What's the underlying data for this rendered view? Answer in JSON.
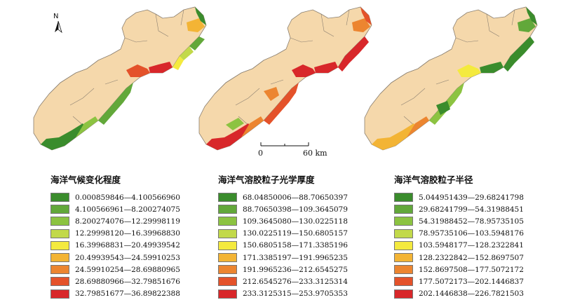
{
  "north_label": "N",
  "scale": {
    "zero": "0",
    "max": "60 km"
  },
  "land_color": "#f5d8ab",
  "border_color": "#8a7f70",
  "panels": [
    {
      "title": "海洋气候变化程度",
      "classes": [
        {
          "range": "0.000859846—4.100566960",
          "color": "#3a8c2c"
        },
        {
          "range": "4.100566961—8.200274075",
          "color": "#62a83a"
        },
        {
          "range": "8.200274076—12.29998119",
          "color": "#8cc341"
        },
        {
          "range": "12.29998120—16.39968830",
          "color": "#c2d94a"
        },
        {
          "range": "16.39968831—20.49939542",
          "color": "#f4ea3e"
        },
        {
          "range": "20.49939543—24.59910253",
          "color": "#f3b435"
        },
        {
          "range": "24.59910254—28.69880965",
          "color": "#ec8530"
        },
        {
          "range": "28.69880966—32.79851676",
          "color": "#e4522a"
        },
        {
          "range": "32.79851677—36.89822388",
          "color": "#d8272a"
        }
      ]
    },
    {
      "title": "海洋气溶胶粒子光学厚度",
      "classes": [
        {
          "range": "68.04850006—88.70650397",
          "color": "#3a8c2c"
        },
        {
          "range": "88.70650398—109.3645079",
          "color": "#62a83a"
        },
        {
          "range": "109.3645080—130.0225118",
          "color": "#8cc341"
        },
        {
          "range": "130.0225119—150.6805157",
          "color": "#c2d94a"
        },
        {
          "range": "150.6805158—171.3385196",
          "color": "#f4ea3e"
        },
        {
          "range": "171.3385197—191.9965235",
          "color": "#f3b435"
        },
        {
          "range": "191.9965236—212.6545275",
          "color": "#ec8530"
        },
        {
          "range": "212.6545276—233.3125314",
          "color": "#e4522a"
        },
        {
          "range": "233.3125315—253.9705353",
          "color": "#d8272a"
        }
      ]
    },
    {
      "title": "海洋气溶胶粒子半径",
      "classes": [
        {
          "range": "5.044951439—29.68241798",
          "color": "#3a8c2c"
        },
        {
          "range": "29.68241799—54.31988451",
          "color": "#62a83a"
        },
        {
          "range": "54.31988452—78.95735105",
          "color": "#8cc341"
        },
        {
          "range": "78.95735106—103.5948176",
          "color": "#c2d94a"
        },
        {
          "range": "103.5948177—128.2322841",
          "color": "#f4ea3e"
        },
        {
          "range": "128.2322842—152.8697507",
          "color": "#f3b435"
        },
        {
          "range": "152.8697508—177.5072172",
          "color": "#ec8530"
        },
        {
          "range": "177.5072173—202.1446837",
          "color": "#e4522a"
        },
        {
          "range": "202.1446838—226.7821503",
          "color": "#d8272a"
        }
      ]
    }
  ]
}
